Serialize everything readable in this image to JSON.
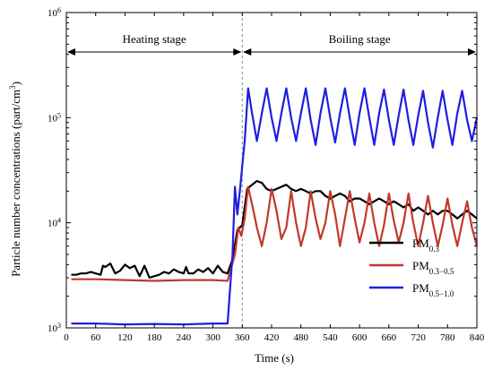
{
  "chart_data": {
    "type": "line",
    "xlabel": "Time (s)",
    "ylabel_main": "Particle number concentrations (part/cm",
    "ylabel_sup": "3",
    "ylabel_end": ")",
    "xlim": [
      0,
      840
    ],
    "ylim": [
      1000,
      1000000
    ],
    "yscale": "log",
    "xticks": [
      "0",
      "60",
      "120",
      "180",
      "240",
      "300",
      "360",
      "420",
      "480",
      "540",
      "600",
      "660",
      "720",
      "780",
      "840"
    ],
    "ytick_sup": [
      "3",
      "4",
      "5",
      "6"
    ],
    "ytick_base": "10",
    "divider_x": 360,
    "stages": [
      {
        "label": "Heating stage",
        "x_start": 0,
        "x_end": 360
      },
      {
        "label": "Boiling  stage",
        "x_start": 360,
        "x_end": 840
      }
    ],
    "legend_position": "bottom-right",
    "series": [
      {
        "name": "PM",
        "name_sub": "0.3",
        "color": "#000000",
        "x": [
          10,
          20,
          30,
          40,
          50,
          60,
          70,
          75,
          80,
          90,
          100,
          110,
          120,
          130,
          140,
          150,
          160,
          170,
          180,
          190,
          200,
          210,
          220,
          230,
          240,
          245,
          250,
          260,
          270,
          280,
          290,
          300,
          310,
          320,
          330,
          340,
          350,
          360,
          370,
          380,
          390,
          400,
          410,
          420,
          430,
          440,
          450,
          460,
          470,
          480,
          490,
          500,
          510,
          520,
          530,
          540,
          550,
          560,
          570,
          580,
          590,
          600,
          610,
          620,
          630,
          640,
          650,
          660,
          670,
          680,
          690,
          700,
          710,
          720,
          730,
          740,
          750,
          760,
          770,
          780,
          790,
          800,
          810,
          820,
          830,
          840
        ],
        "y": [
          3200,
          3200,
          3300,
          3300,
          3400,
          3300,
          3200,
          3900,
          3800,
          4100,
          3300,
          3500,
          4000,
          3700,
          3900,
          3100,
          3900,
          3000,
          3100,
          3200,
          3400,
          3300,
          3600,
          3400,
          3300,
          3800,
          3300,
          3300,
          3600,
          3400,
          3700,
          3300,
          3900,
          3400,
          3300,
          4500,
          8500,
          9500,
          21000,
          23000,
          25000,
          24000,
          21000,
          20000,
          21000,
          22000,
          23000,
          21000,
          20000,
          21000,
          20000,
          19000,
          20000,
          20000,
          18000,
          17000,
          18000,
          19000,
          18000,
          16000,
          17000,
          17000,
          16000,
          15000,
          16000,
          17000,
          16000,
          15000,
          16000,
          15000,
          14000,
          15000,
          13000,
          14000,
          13000,
          12000,
          13000,
          12000,
          13000,
          13000,
          12000,
          11000,
          12000,
          13000,
          12000,
          11000
        ]
      },
      {
        "name": "PM",
        "name_sub": "0.3−0.5",
        "color": "#c0392b",
        "x": [
          10,
          60,
          120,
          180,
          240,
          300,
          330,
          345,
          352,
          358,
          365,
          372,
          380,
          390,
          400,
          410,
          420,
          430,
          440,
          450,
          460,
          470,
          480,
          490,
          500,
          510,
          520,
          530,
          540,
          550,
          560,
          570,
          580,
          590,
          600,
          610,
          620,
          630,
          640,
          650,
          660,
          670,
          680,
          690,
          700,
          710,
          720,
          730,
          740,
          750,
          760,
          770,
          780,
          790,
          800,
          810,
          820,
          830,
          840
        ],
        "y": [
          2900,
          2900,
          2850,
          2800,
          2850,
          2850,
          2800,
          5000,
          9000,
          7500,
          11000,
          22000,
          15000,
          9000,
          6000,
          10000,
          21000,
          13000,
          7000,
          9000,
          20000,
          10000,
          6000,
          9000,
          20000,
          11000,
          7000,
          10000,
          20000,
          12000,
          6000,
          11000,
          20000,
          11000,
          6500,
          10000,
          19000,
          10000,
          6000,
          9500,
          19000,
          10500,
          6500,
          10000,
          19000,
          10000,
          6000,
          10000,
          18000,
          10000,
          6000,
          9500,
          17000,
          9500,
          6000,
          10000,
          16000,
          9000,
          6000
        ]
      },
      {
        "name": "PM",
        "name_sub": "0.5−1.0",
        "color": "#1f1fe0",
        "x": [
          10,
          60,
          120,
          180,
          240,
          300,
          330,
          340,
          345,
          350,
          355,
          360,
          365,
          372,
          380,
          390,
          400,
          410,
          420,
          430,
          440,
          450,
          460,
          470,
          480,
          490,
          500,
          510,
          520,
          530,
          540,
          550,
          560,
          570,
          580,
          590,
          600,
          610,
          620,
          630,
          640,
          650,
          660,
          670,
          680,
          690,
          700,
          710,
          720,
          730,
          740,
          750,
          760,
          770,
          780,
          790,
          800,
          810,
          820,
          830,
          840
        ],
        "y": [
          1100,
          1100,
          1080,
          1090,
          1080,
          1100,
          1100,
          5000,
          22000,
          12000,
          20000,
          35000,
          60000,
          190000,
          110000,
          60000,
          110000,
          190000,
          100000,
          60000,
          110000,
          190000,
          100000,
          60000,
          110000,
          190000,
          95000,
          55000,
          110000,
          190000,
          100000,
          58000,
          110000,
          190000,
          100000,
          55000,
          110000,
          190000,
          100000,
          55000,
          110000,
          185000,
          95000,
          55000,
          105000,
          185000,
          95000,
          55000,
          105000,
          180000,
          90000,
          52000,
          100000,
          180000,
          95000,
          55000,
          110000,
          180000,
          95000,
          60000,
          100000
        ]
      }
    ]
  }
}
